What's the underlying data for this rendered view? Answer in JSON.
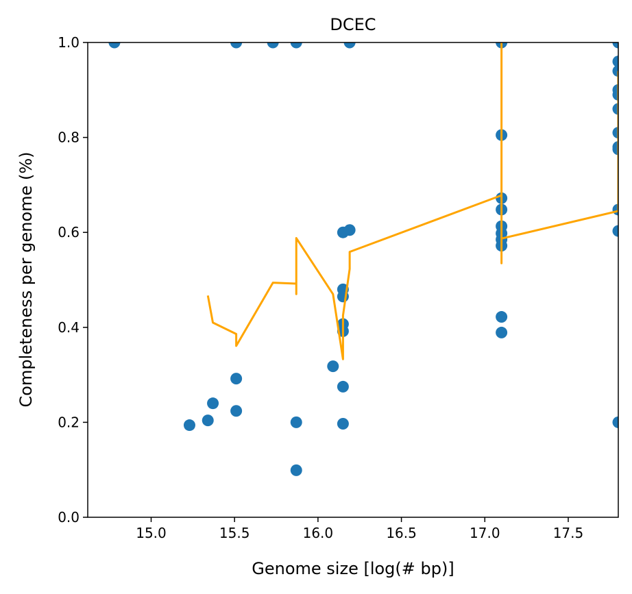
{
  "chart_data": {
    "type": "scatter",
    "title": "DCEC",
    "xlabel": "Genome size [log(# bp)]",
    "ylabel": "Completeness per genome (%)",
    "xlim": [
      14.62,
      17.8
    ],
    "ylim": [
      0.0,
      1.0
    ],
    "xticks": [
      15.0,
      15.5,
      16.0,
      16.5,
      17.0,
      17.5
    ],
    "xtick_labels": [
      "15.0",
      "15.5",
      "16.0",
      "16.5",
      "17.0",
      "17.5"
    ],
    "yticks": [
      0.0,
      0.2,
      0.4,
      0.6,
      0.8,
      1.0
    ],
    "ytick_labels": [
      "0.0",
      "0.2",
      "0.4",
      "0.6",
      "0.8",
      "1.0"
    ],
    "grid": false,
    "colors": {
      "points": "#1f77b4",
      "line": "#ffa500"
    },
    "series": [
      {
        "kind": "scatter",
        "points": [
          [
            14.78,
            1.0
          ],
          [
            15.51,
            1.0
          ],
          [
            15.73,
            1.0
          ],
          [
            15.87,
            1.0
          ],
          [
            16.19,
            1.0
          ],
          [
            17.1,
            1.0
          ],
          [
            17.8,
            1.0
          ],
          [
            17.8,
            0.96
          ],
          [
            17.8,
            0.94
          ],
          [
            17.8,
            0.9
          ],
          [
            17.8,
            0.89
          ],
          [
            17.8,
            0.86
          ],
          [
            17.1,
            0.805
          ],
          [
            17.8,
            0.81
          ],
          [
            17.8,
            0.78
          ],
          [
            17.8,
            0.775
          ],
          [
            17.1,
            0.672
          ],
          [
            17.1,
            0.648
          ],
          [
            17.8,
            0.648
          ],
          [
            17.1,
            0.613
          ],
          [
            17.1,
            0.598
          ],
          [
            17.1,
            0.585
          ],
          [
            17.1,
            0.572
          ],
          [
            17.8,
            0.603
          ],
          [
            16.15,
            0.6
          ],
          [
            16.19,
            0.605
          ],
          [
            16.15,
            0.48
          ],
          [
            16.15,
            0.465
          ],
          [
            16.15,
            0.407
          ],
          [
            16.15,
            0.392
          ],
          [
            17.1,
            0.422
          ],
          [
            17.1,
            0.389
          ],
          [
            16.09,
            0.318
          ],
          [
            16.15,
            0.275
          ],
          [
            16.15,
            0.197
          ],
          [
            15.51,
            0.292
          ],
          [
            15.51,
            0.224
          ],
          [
            15.37,
            0.24
          ],
          [
            15.34,
            0.204
          ],
          [
            15.23,
            0.194
          ],
          [
            15.87,
            0.2
          ],
          [
            15.87,
            0.099
          ],
          [
            17.8,
            0.2
          ]
        ]
      },
      {
        "kind": "line",
        "points": [
          [
            15.34,
            0.467
          ],
          [
            15.37,
            0.41
          ],
          [
            15.51,
            0.386
          ],
          [
            15.51,
            0.361
          ],
          [
            15.73,
            0.494
          ],
          [
            15.87,
            0.492
          ],
          [
            15.87,
            0.47
          ],
          [
            15.87,
            0.588
          ],
          [
            16.09,
            0.47
          ],
          [
            16.15,
            0.333
          ],
          [
            16.15,
            0.425
          ],
          [
            16.19,
            0.523
          ],
          [
            16.19,
            0.559
          ],
          [
            17.1,
            0.678
          ],
          [
            17.1,
            1.0
          ],
          [
            17.1,
            0.535
          ],
          [
            17.1,
            0.587
          ],
          [
            17.8,
            0.645
          ],
          [
            17.8,
            0.94
          ]
        ]
      }
    ]
  }
}
